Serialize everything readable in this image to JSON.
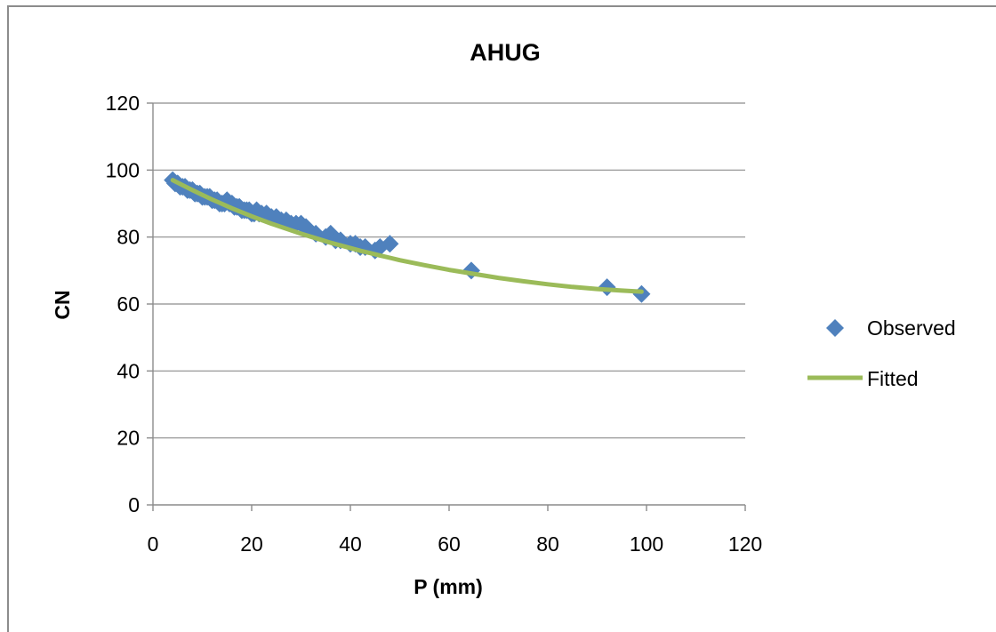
{
  "chart_data": {
    "type": "scatter",
    "title": "AHUG",
    "xlabel": "P (mm)",
    "ylabel": "CN",
    "xlim": [
      0,
      120
    ],
    "ylim": [
      0,
      120
    ],
    "xticks": [
      0,
      20,
      40,
      60,
      80,
      100,
      120
    ],
    "yticks": [
      0,
      20,
      40,
      60,
      80,
      100,
      120
    ],
    "grid": "horizontal",
    "legend_position": "right",
    "series": [
      {
        "name": "Observed",
        "kind": "markers",
        "marker": "diamond",
        "color": "#4f81bd",
        "x": [
          4,
          4.5,
          5,
          5.5,
          6,
          6.5,
          7,
          7.5,
          8,
          8.5,
          9,
          9.5,
          10,
          10.5,
          11,
          11.5,
          12,
          12.5,
          13,
          13.5,
          14,
          14.5,
          15,
          15.5,
          16,
          16.5,
          17,
          17.5,
          18,
          18.5,
          19,
          19.5,
          20,
          20.5,
          21,
          21.5,
          22,
          23,
          24,
          25,
          26,
          27,
          28,
          29,
          30,
          31,
          33,
          35,
          36,
          37,
          38,
          40,
          41,
          42,
          43,
          45,
          46,
          48,
          64.5,
          92,
          99
        ],
        "y": [
          97,
          96,
          96,
          95,
          95,
          95,
          94,
          94,
          94,
          93,
          93,
          93,
          92,
          92,
          92,
          92,
          91,
          91,
          91,
          90,
          90,
          90,
          91,
          90,
          90,
          89,
          89,
          89,
          88,
          88,
          88,
          88,
          87,
          87,
          88,
          87,
          87,
          87,
          86,
          86,
          85,
          85,
          84,
          84,
          84,
          83,
          81,
          80,
          81,
          79,
          79,
          78,
          78,
          77,
          77,
          76,
          77,
          78,
          70,
          65,
          63
        ]
      },
      {
        "name": "Fitted",
        "kind": "line",
        "color": "#9bbb59",
        "x": [
          4,
          6,
          8,
          10,
          12,
          14,
          16,
          18,
          20,
          22,
          24,
          26,
          28,
          30,
          32,
          34,
          36,
          38,
          40,
          42,
          44,
          46,
          48,
          50,
          55,
          60,
          65,
          70,
          75,
          80,
          85,
          90,
          95,
          99
        ],
        "y": [
          97.0,
          95.5,
          94.0,
          92.6,
          91.2,
          89.9,
          88.6,
          87.4,
          86.2,
          85.1,
          84.0,
          83.0,
          82.0,
          81.0,
          80.1,
          79.2,
          78.3,
          77.5,
          76.7,
          75.9,
          75.2,
          74.5,
          73.8,
          73.1,
          71.6,
          70.2,
          69.0,
          67.8,
          66.8,
          65.9,
          65.1,
          64.5,
          64.0,
          63.7
        ]
      }
    ]
  }
}
